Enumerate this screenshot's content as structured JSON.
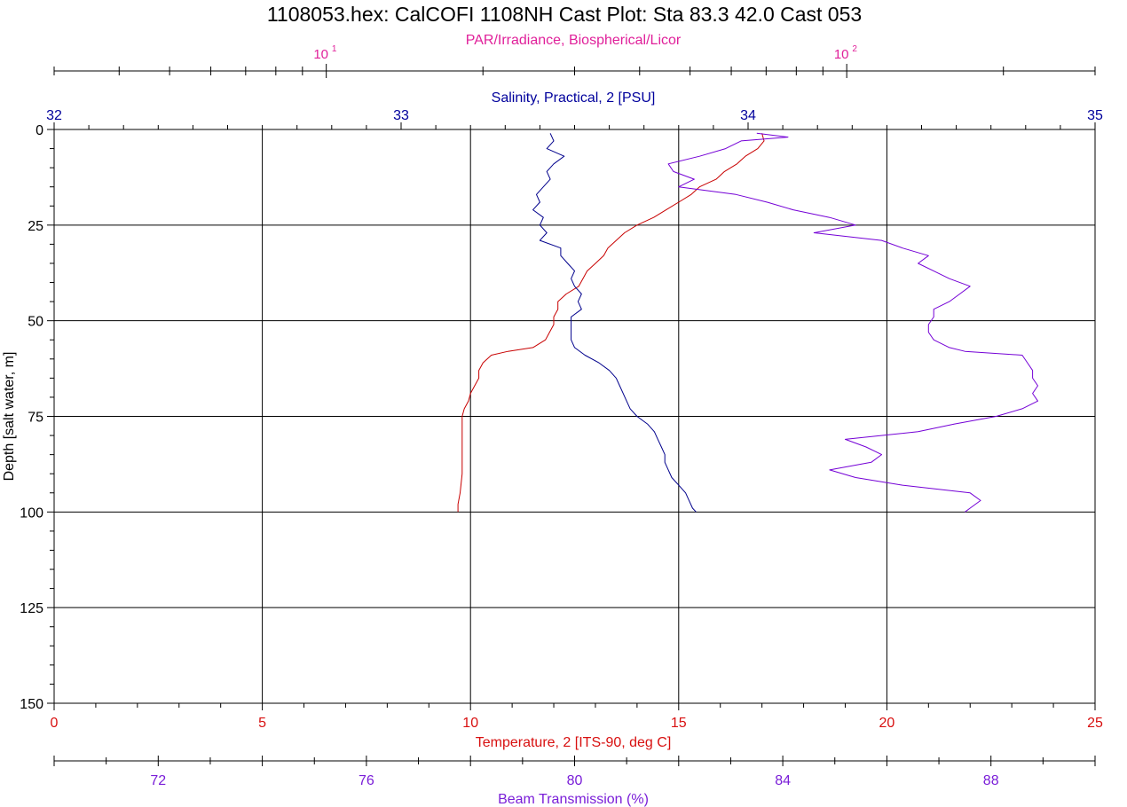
{
  "chart_data": {
    "type": "line",
    "title": "1108053.hex: CalCOFI 1108NH Cast Plot:  Sta 83.3  42.0  Cast 053",
    "grid": true,
    "y_axis": {
      "label": "Depth [salt water, m]",
      "range": [
        0,
        150
      ],
      "inverted": true,
      "ticks": [
        "0",
        "25",
        "50",
        "75",
        "100",
        "125",
        "150"
      ],
      "tick_values": [
        0,
        25,
        50,
        75,
        100,
        125,
        150
      ]
    },
    "axes": {
      "par": {
        "label": "PAR/Irradiance, Biospherical/Licor",
        "color": "#e0209a",
        "scale": "log",
        "range": [
          3,
          300
        ],
        "tick_labels": [
          {
            "base": "10",
            "exp": "1",
            "value": 10
          },
          {
            "base": "10",
            "exp": "2",
            "value": 100
          }
        ]
      },
      "salinity": {
        "label": "Salinity, Practical, 2 [PSU]",
        "color": "#00009c",
        "range": [
          32,
          35
        ],
        "ticks": [
          "32",
          "33",
          "34",
          "35"
        ],
        "tick_values": [
          32,
          33,
          34,
          35
        ]
      },
      "temperature": {
        "label": "Temperature, 2 [ITS-90, deg C]",
        "color": "#d81010",
        "range": [
          0,
          25
        ],
        "ticks": [
          "0",
          "5",
          "10",
          "15",
          "20",
          "25"
        ],
        "tick_values": [
          0,
          5,
          10,
          15,
          20,
          25
        ]
      },
      "beam": {
        "label": "Beam Transmission (%)",
        "color": "#7a1ed8",
        "range": [
          70,
          90
        ],
        "ticks": [
          "72",
          "76",
          "80",
          "84",
          "88"
        ],
        "tick_values": [
          72,
          76,
          80,
          84,
          88
        ]
      }
    },
    "series": [
      {
        "key": "temperature",
        "color": "#c80000",
        "points": [
          [
            17.0,
            1
          ],
          [
            17.05,
            3
          ],
          [
            16.9,
            5
          ],
          [
            16.6,
            7
          ],
          [
            16.4,
            9
          ],
          [
            16.1,
            11
          ],
          [
            15.9,
            13
          ],
          [
            15.5,
            15
          ],
          [
            15.3,
            17
          ],
          [
            15.0,
            19
          ],
          [
            14.7,
            21
          ],
          [
            14.4,
            23
          ],
          [
            14.0,
            25
          ],
          [
            13.7,
            27
          ],
          [
            13.5,
            29
          ],
          [
            13.3,
            31
          ],
          [
            13.2,
            33
          ],
          [
            13.0,
            35
          ],
          [
            12.8,
            37
          ],
          [
            12.7,
            39
          ],
          [
            12.6,
            41
          ],
          [
            12.3,
            43
          ],
          [
            12.1,
            45
          ],
          [
            12.1,
            47
          ],
          [
            12.0,
            49
          ],
          [
            12.0,
            51
          ],
          [
            11.9,
            53
          ],
          [
            11.8,
            55
          ],
          [
            11.5,
            57
          ],
          [
            10.9,
            58
          ],
          [
            10.5,
            59
          ],
          [
            10.3,
            61
          ],
          [
            10.2,
            63
          ],
          [
            10.2,
            65
          ],
          [
            10.1,
            67
          ],
          [
            10.0,
            69
          ],
          [
            9.95,
            71
          ],
          [
            9.85,
            73
          ],
          [
            9.8,
            75
          ],
          [
            9.8,
            80
          ],
          [
            9.8,
            85
          ],
          [
            9.8,
            90
          ],
          [
            9.75,
            95
          ],
          [
            9.7,
            98
          ],
          [
            9.7,
            100
          ]
        ]
      },
      {
        "key": "salinity",
        "color": "#00008c",
        "points": [
          [
            33.43,
            1
          ],
          [
            33.44,
            3
          ],
          [
            33.42,
            5
          ],
          [
            33.47,
            7
          ],
          [
            33.44,
            9
          ],
          [
            33.42,
            11
          ],
          [
            33.43,
            13
          ],
          [
            33.41,
            15
          ],
          [
            33.39,
            17
          ],
          [
            33.4,
            19
          ],
          [
            33.38,
            21
          ],
          [
            33.41,
            23
          ],
          [
            33.4,
            25
          ],
          [
            33.42,
            27
          ],
          [
            33.4,
            29
          ],
          [
            33.46,
            31
          ],
          [
            33.46,
            33
          ],
          [
            33.48,
            35
          ],
          [
            33.5,
            37
          ],
          [
            33.49,
            39
          ],
          [
            33.5,
            41
          ],
          [
            33.52,
            43
          ],
          [
            33.51,
            45
          ],
          [
            33.52,
            47
          ],
          [
            33.49,
            49
          ],
          [
            33.49,
            51
          ],
          [
            33.49,
            53
          ],
          [
            33.49,
            55
          ],
          [
            33.5,
            57
          ],
          [
            33.53,
            59
          ],
          [
            33.57,
            61
          ],
          [
            33.6,
            63
          ],
          [
            33.62,
            65
          ],
          [
            33.63,
            67
          ],
          [
            33.64,
            69
          ],
          [
            33.65,
            71
          ],
          [
            33.66,
            73
          ],
          [
            33.68,
            75
          ],
          [
            33.71,
            77
          ],
          [
            33.73,
            79
          ],
          [
            33.74,
            81
          ],
          [
            33.75,
            83
          ],
          [
            33.76,
            85
          ],
          [
            33.76,
            87
          ],
          [
            33.77,
            89
          ],
          [
            33.78,
            91
          ],
          [
            33.8,
            93
          ],
          [
            33.82,
            95
          ],
          [
            33.83,
            97
          ],
          [
            33.84,
            99
          ],
          [
            33.85,
            100
          ]
        ]
      },
      {
        "key": "beam",
        "color": "#7400d6",
        "points": [
          [
            83.5,
            1
          ],
          [
            84.1,
            2
          ],
          [
            83.2,
            3
          ],
          [
            82.9,
            5
          ],
          [
            82.4,
            7
          ],
          [
            81.8,
            9
          ],
          [
            81.9,
            11
          ],
          [
            82.3,
            13
          ],
          [
            82.0,
            15
          ],
          [
            83.1,
            17
          ],
          [
            83.7,
            19
          ],
          [
            84.2,
            21
          ],
          [
            84.9,
            23
          ],
          [
            85.4,
            25
          ],
          [
            84.6,
            27
          ],
          [
            85.9,
            29
          ],
          [
            86.3,
            31
          ],
          [
            86.8,
            33
          ],
          [
            86.6,
            35
          ],
          [
            86.9,
            37
          ],
          [
            87.2,
            39
          ],
          [
            87.6,
            41
          ],
          [
            87.4,
            43
          ],
          [
            87.2,
            45
          ],
          [
            86.9,
            47
          ],
          [
            86.9,
            49
          ],
          [
            86.8,
            51
          ],
          [
            86.8,
            53
          ],
          [
            86.9,
            55
          ],
          [
            87.2,
            57
          ],
          [
            87.5,
            58
          ],
          [
            88.6,
            59
          ],
          [
            88.7,
            61
          ],
          [
            88.8,
            63
          ],
          [
            88.8,
            65
          ],
          [
            88.9,
            67
          ],
          [
            88.8,
            69
          ],
          [
            88.9,
            71
          ],
          [
            88.6,
            73
          ],
          [
            88.1,
            75
          ],
          [
            87.3,
            77
          ],
          [
            86.6,
            79
          ],
          [
            85.2,
            81
          ],
          [
            85.6,
            83
          ],
          [
            85.9,
            85
          ],
          [
            85.7,
            87
          ],
          [
            84.9,
            89
          ],
          [
            85.4,
            91
          ],
          [
            86.3,
            93
          ],
          [
            87.6,
            95
          ],
          [
            87.8,
            97
          ],
          [
            87.6,
            99
          ],
          [
            87.5,
            100
          ]
        ]
      }
    ]
  }
}
